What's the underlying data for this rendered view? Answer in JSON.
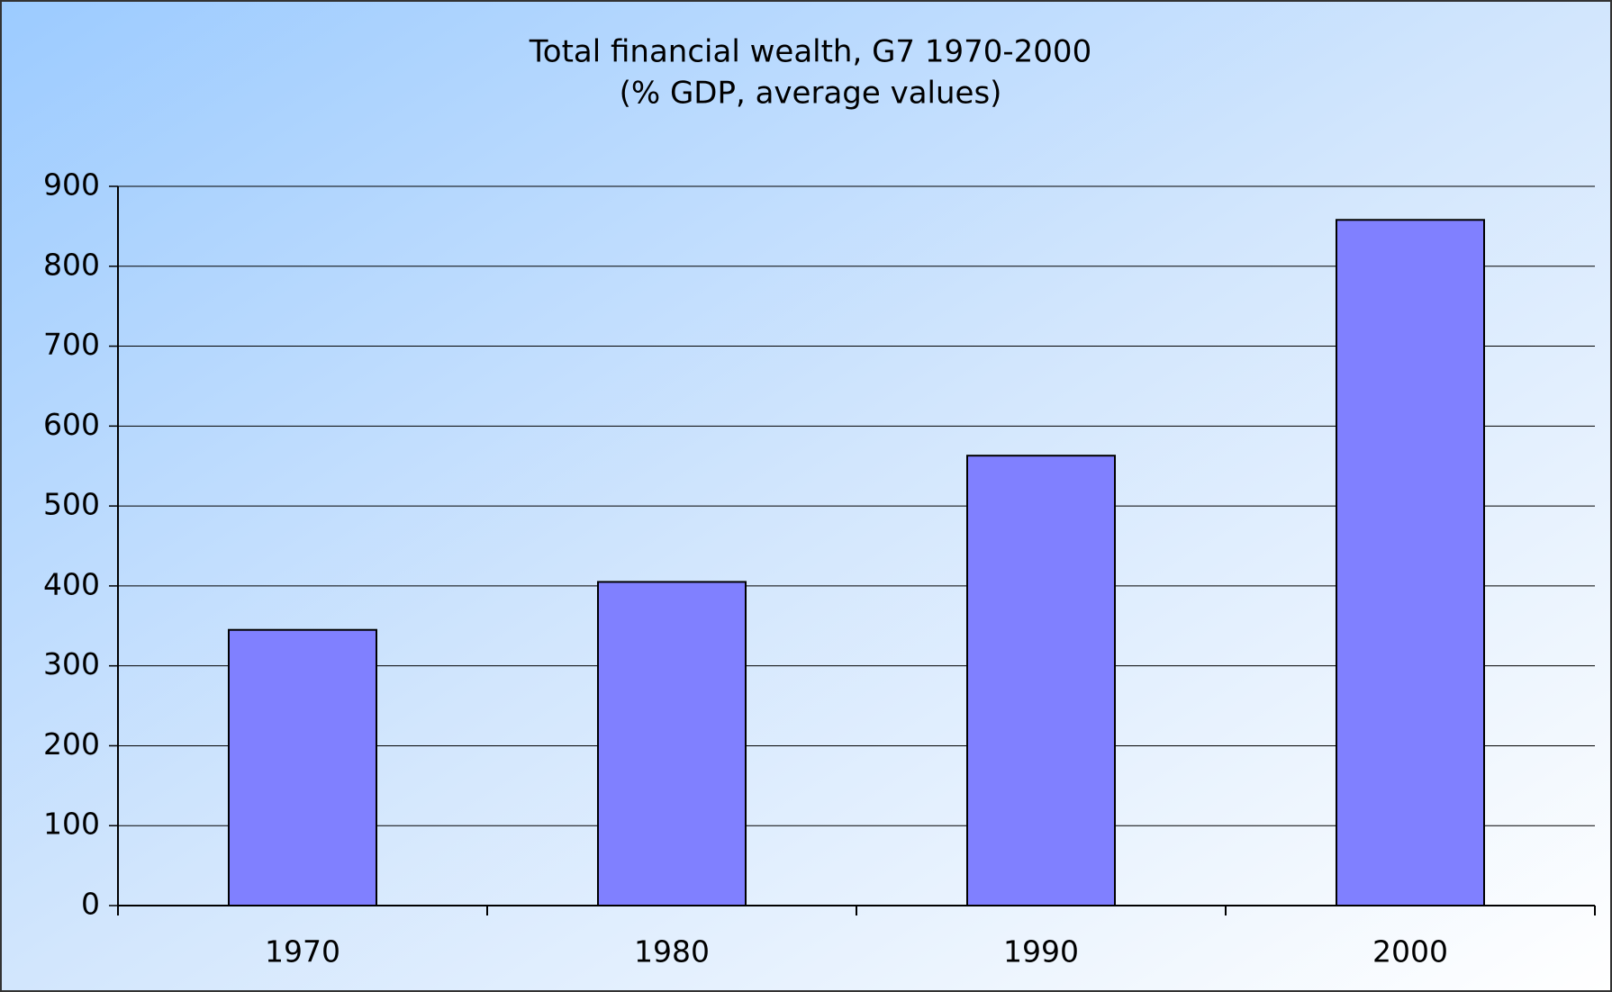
{
  "chart_data": {
    "type": "bar",
    "title": "Total financial wealth, G7 1970-2000",
    "subtitle": "(% GDP, average values)",
    "categories": [
      "1970",
      "1980",
      "1990",
      "2000"
    ],
    "values": [
      345,
      405,
      563,
      858
    ],
    "color": "#8080ff",
    "ylim": [
      0,
      900
    ],
    "yticks": [
      0,
      100,
      200,
      300,
      400,
      500,
      600,
      700,
      800,
      900
    ],
    "grid": true
  }
}
